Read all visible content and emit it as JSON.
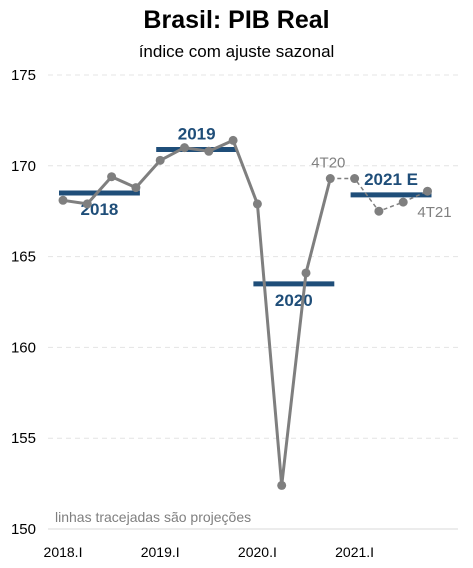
{
  "chart_data": {
    "type": "line",
    "title": "Brasil: PIB Real",
    "subtitle": "índice com ajuste sazonal",
    "ylim": [
      150,
      175
    ],
    "yticks": [
      150,
      155,
      160,
      165,
      170,
      175
    ],
    "grid": true,
    "x_tick_labels": [
      "2018.I",
      "2019.I",
      "2020.I",
      "2021.I"
    ],
    "quarters": [
      "2018.I",
      "2018.II",
      "2018.III",
      "2018.IV",
      "2019.I",
      "2019.II",
      "2019.III",
      "2019.IV",
      "2020.I",
      "2020.II",
      "2020.III",
      "2020.IV",
      "2021.I",
      "2021.II",
      "2021.III",
      "2021.IV"
    ],
    "series": [
      {
        "values": [
          168.1,
          167.9,
          169.4,
          168.8,
          170.3,
          171.0,
          170.8,
          171.4,
          167.9,
          152.4,
          164.1,
          169.3,
          169.3,
          167.5,
          168.0,
          168.6
        ],
        "projection_from_index": 11,
        "color": "#7f7f7f"
      }
    ],
    "annual_averages": [
      {
        "label": "2018",
        "value": 168.5
      },
      {
        "label": "2019",
        "value": 170.9
      },
      {
        "label": "2020",
        "value": 163.5
      },
      {
        "label": "2021 E",
        "value": 168.4
      }
    ],
    "annual_color": "#1f4e79",
    "point_labels": {
      "first": "4T20",
      "last": "4T21"
    },
    "note": "linhas tracejadas são projeções"
  }
}
